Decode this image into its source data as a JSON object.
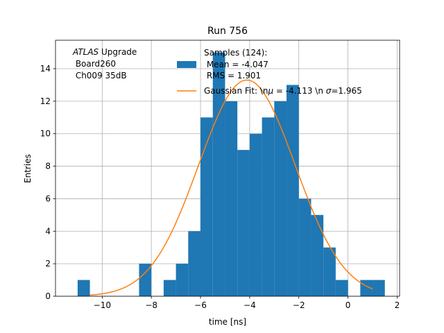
{
  "chart_data": {
    "type": "bar",
    "title": "Run 756",
    "xlabel": "time [ns]",
    "ylabel": "Entries",
    "xlim": [
      -11.9,
      2.1
    ],
    "ylim": [
      0,
      15.75
    ],
    "xticks": [
      -10,
      -8,
      -6,
      -4,
      -2,
      0,
      2
    ],
    "xtick_labels": [
      "−10",
      "−8",
      "−6",
      "−4",
      "−2",
      "0",
      "2"
    ],
    "yticks": [
      0,
      2,
      4,
      6,
      8,
      10,
      12,
      14
    ],
    "ytick_labels": [
      "0",
      "2",
      "4",
      "6",
      "8",
      "10",
      "12",
      "14"
    ],
    "grid": true,
    "histogram": {
      "bin_start": -11.0,
      "bin_width": 0.5,
      "counts": [
        1,
        0,
        0,
        0,
        0,
        2,
        0,
        1,
        2,
        4,
        11,
        15,
        12,
        9,
        10,
        11,
        12,
        13,
        6,
        5,
        3,
        1,
        0,
        1,
        1
      ],
      "color": "#1f77b4"
    },
    "fit": {
      "x_range": [
        -10.5,
        1.0
      ],
      "amplitude": 13.3,
      "mu": -4.113,
      "sigma": 1.965,
      "color": "#ff7f0e"
    },
    "annotation": {
      "italic": "ATLAS",
      "line1_rest": " Upgrade",
      "line2": " Board260",
      "line3": " Ch009 35dB"
    },
    "legend": {
      "samples_line1": "Samples (124):",
      "samples_line2": " Mean = -4.047",
      "samples_line3": " RMS = 1.901",
      "fit_pre": "Gaussian Fit: \\n",
      "fit_mu_symbol": "μ",
      "fit_mid": " = -4.113 \\n ",
      "fit_sigma_symbol": "σ",
      "fit_post": "=1.965"
    }
  }
}
